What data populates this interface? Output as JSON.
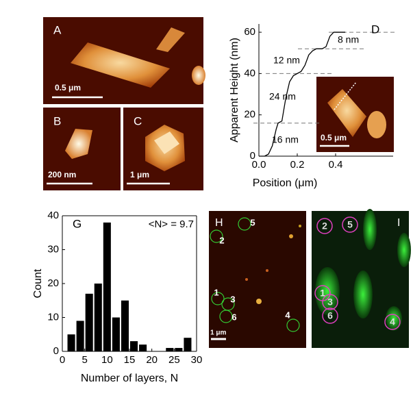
{
  "chart_data": [
    {
      "type": "line",
      "panel_label": "D",
      "x": [
        0,
        0.03,
        0.05,
        0.07,
        0.09,
        0.1,
        0.12,
        0.14,
        0.16,
        0.18,
        0.2,
        0.22,
        0.24,
        0.26,
        0.28,
        0.3,
        0.33,
        0.35,
        0.37,
        0.39,
        0.42,
        0.45
      ],
      "values": [
        0,
        0,
        1,
        5,
        13,
        16,
        17,
        28,
        36,
        39,
        40,
        41,
        44,
        49,
        51,
        52,
        52,
        53,
        58,
        60,
        60,
        60
      ],
      "color": "#000000",
      "xlim": [
        0,
        0.7
      ],
      "ylim": [
        0,
        64
      ],
      "xticks": [
        {
          "value": 0,
          "label": "0.0"
        },
        0.2,
        0.4
      ],
      "yticks": [
        0,
        20,
        40,
        60
      ],
      "xlabel": "Position (μm)",
      "ylabel": "Apparent Height (nm)",
      "reference_lines": [
        16,
        40,
        52,
        60
      ],
      "annotations": [
        "16 nm",
        "24 nm",
        "12 nm",
        "8 nm"
      ],
      "inset_scale_label": "0.5 μm"
    },
    {
      "type": "histogram",
      "panel_label": "G",
      "bins": [
        1,
        3,
        5,
        7,
        9,
        11,
        13,
        15,
        17,
        19,
        21,
        23,
        25,
        27,
        29
      ],
      "values": [
        5,
        9,
        17,
        20,
        38,
        10,
        15,
        3,
        2,
        0,
        0,
        1,
        1,
        4
      ],
      "color": "#000000",
      "xlim": [
        0,
        30
      ],
      "ylim": [
        0,
        40
      ],
      "xticks": [
        0,
        5,
        10,
        15,
        20,
        25,
        30
      ],
      "yticks": [
        0,
        10,
        20,
        30,
        40
      ],
      "xlabel": "Number of layers, N",
      "ylabel": "Count",
      "annotation": "<N> = 9.7"
    }
  ],
  "panels": {
    "A": {
      "label": "A",
      "scale_label": "0.5 μm"
    },
    "B": {
      "label": "B",
      "scale_label": "200 nm"
    },
    "C": {
      "label": "C",
      "scale_label": "1 μm"
    },
    "H": {
      "label": "H",
      "scale_label": "1 μm",
      "markers": [
        "1",
        "2",
        "3",
        "4",
        "5",
        "6"
      ]
    },
    "I": {
      "label": "I",
      "markers": [
        "1",
        "2",
        "3",
        "4",
        "5",
        "6"
      ]
    }
  }
}
